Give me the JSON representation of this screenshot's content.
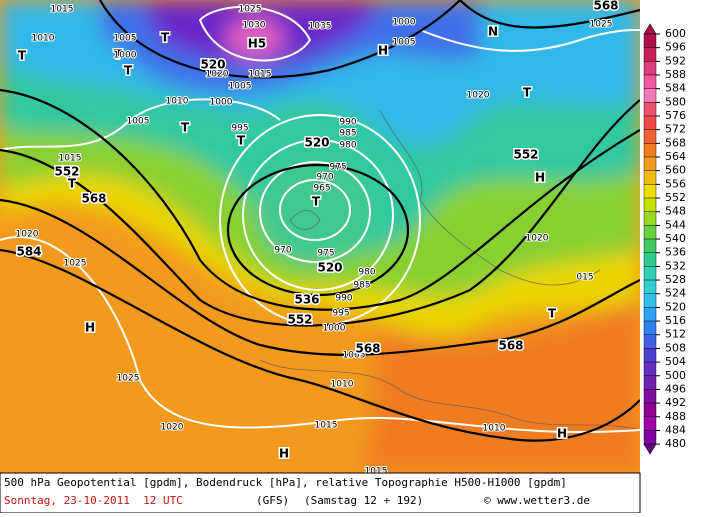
{
  "map": {
    "labels": [
      "1015",
      "1025",
      "1030",
      "H5",
      "1035",
      "1000",
      "568",
      "1005",
      "1010",
      "1005",
      "T",
      "T",
      "T",
      "1000",
      "T",
      "520",
      "1020",
      "1015",
      "1005",
      "1010",
      "1000",
      "H",
      "N",
      "1025",
      "T",
      "1020",
      "1005",
      "T",
      "995",
      "T",
      "990",
      "985",
      "520",
      "980",
      "552",
      "H",
      "1015",
      "552",
      "T",
      "975",
      "970",
      "965",
      "T",
      "568",
      "1020",
      "1020",
      "584",
      "1025",
      "970",
      "975",
      "520",
      "980",
      "985",
      "536",
      "990",
      "995",
      "552",
      "1000",
      "H",
      "T",
      "015",
      "1005",
      "568",
      "568",
      "1025",
      "1010",
      "1020",
      "1015",
      "1010",
      "H",
      "H",
      "1015"
    ]
  },
  "legend": {
    "levels": [
      600,
      596,
      592,
      588,
      584,
      580,
      576,
      572,
      568,
      564,
      560,
      556,
      552,
      548,
      544,
      540,
      536,
      532,
      528,
      524,
      520,
      516,
      512,
      508,
      504,
      500,
      496,
      492,
      488,
      484,
      480
    ],
    "colors": [
      "#b0104a",
      "#c82058",
      "#e03c7c",
      "#f05a9c",
      "#f07ab4",
      "#f05070",
      "#f04848",
      "#f06030",
      "#f07c20",
      "#f09c20",
      "#f0bc10",
      "#f0dc00",
      "#c8e000",
      "#98d820",
      "#68d040",
      "#40c860",
      "#30c890",
      "#30d0b0",
      "#30d0d0",
      "#30c0e8",
      "#30a0f0",
      "#3080f0",
      "#4060e0",
      "#5040d0",
      "#6030c0",
      "#7020b0",
      "#8010a0",
      "#900090",
      "#a000a8",
      "#8000a0",
      "#600080"
    ]
  },
  "footer": {
    "description": "500 hPa Geopotential [gpdm], Bodendruck [hPa], relative Topographie H500-H1000 [gpdm]",
    "date": "Sonntag, 23-10-2011  12 UTC",
    "model": "(GFS)",
    "run": "(Samstag 12 + 192)",
    "copyright": "© www.wetter3.de"
  }
}
